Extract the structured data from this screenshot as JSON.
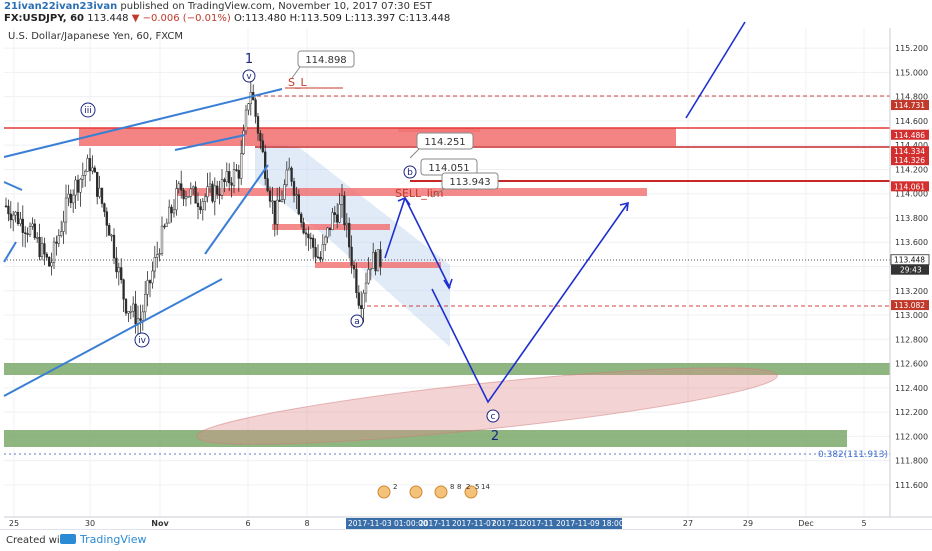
{
  "header": {
    "user": "21ivan22ivan23ivan",
    "published": "published on TradingView.com, November 10, 2017 07:30 EST"
  },
  "symbol_line": {
    "symbol": "FX:USDJPY, 60",
    "last": "113.448",
    "change": "▼ −0.006 (−0.01%)",
    "o_label": "O:",
    "o": "113.480",
    "h_label": "H:",
    "h": "113.509",
    "l_label": "L:",
    "l": "113.397",
    "c_label": "C:",
    "c": "113.448"
  },
  "footer": {
    "made_with": "Created with",
    "brand": "TradingView"
  },
  "colors": {
    "candle": "#2b2b2b",
    "trend_blue": "#3a7fd5",
    "wave_navy": "#1a237e",
    "red_zone": "#f26d6d",
    "green_zone": "#6a9e57",
    "projection": "#1f2fd0"
  },
  "chart_data": {
    "type": "candlestick",
    "title": "U.S. Dollar/Japanese Yen, 60, FXCM",
    "ylim": [
      111.5,
      115.3
    ],
    "y_ticks": [
      "115.200",
      "115.000",
      "114.800",
      "114.600",
      "114.400",
      "114.200",
      "114.000",
      "113.800",
      "113.600",
      "113.400",
      "113.200",
      "113.000",
      "112.800",
      "112.600",
      "112.400",
      "112.200",
      "112.000",
      "111.800",
      "111.600"
    ],
    "x_ticks": [
      "25",
      "30",
      "Nov",
      "6",
      "8",
      "27",
      "29",
      "Dec",
      "5"
    ],
    "x_ticks_bold": [
      "Nov"
    ],
    "current_price": {
      "value": "113.448",
      "countdown": "29:43"
    },
    "price_labels": [
      {
        "value": "114.731",
        "style": "dashed-red"
      },
      {
        "value": "114.486",
        "style": "solid-red"
      },
      {
        "value": "114.334",
        "style": "solid-red"
      },
      {
        "value": "114.326",
        "style": "solid-red"
      },
      {
        "value": "114.061",
        "style": "solid-red"
      },
      {
        "value": "113.082",
        "style": "dashed-red"
      }
    ],
    "callouts": [
      "114.898",
      "114.251",
      "114.051",
      "113.943"
    ],
    "annotations": {
      "wave_1": "1",
      "wave_2": "2",
      "wave_v": "v",
      "wave_iii": "iii",
      "wave_iv": "iv",
      "wave_a": "a",
      "wave_b": "b",
      "wave_c": "c",
      "sl": "S_L",
      "sell_limit": "SELL_lim",
      "fib": "0.382(111.913)"
    },
    "date_range": [
      "2017-11-03 01:00:00",
      "2017-11",
      "2017-11-07",
      "2017-11",
      "2017-11",
      "2017-11-09 18:00:00"
    ],
    "event_badges": [
      "2",
      "8",
      "8",
      "2",
      "5",
      "14"
    ],
    "zones": {
      "red": [
        "sl_zone",
        "zone_114_2",
        "sell_zone",
        "zone_113_7",
        "zone_113_4"
      ],
      "green": [
        "support_112_6",
        "support_112_1"
      ]
    }
  }
}
